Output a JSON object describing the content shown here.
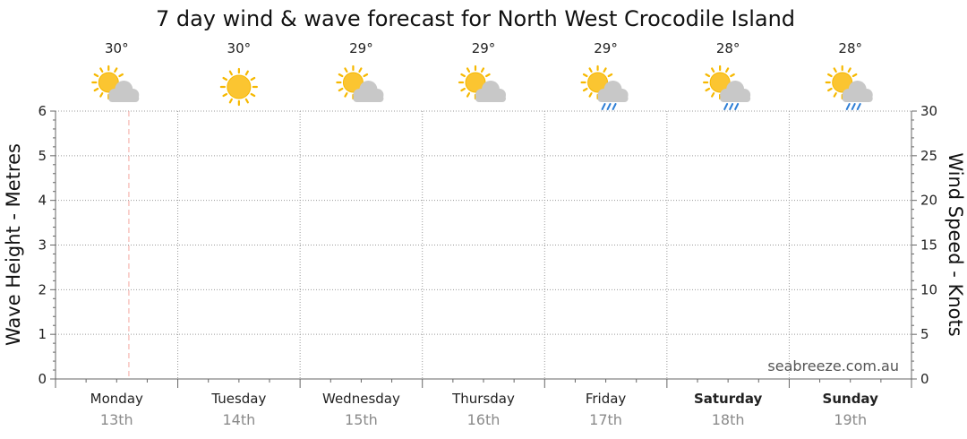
{
  "chart_data": {
    "type": "line",
    "title": "7 day wind & wave forecast for North West Crocodile Island",
    "ylabel_left": "Wave Height - Metres",
    "ylabel_right": "Wind Speed - Knots",
    "ylim_left": [
      0,
      6
    ],
    "ylim_right": [
      0,
      30
    ],
    "yticks_left": [
      "0",
      "1",
      "2",
      "3",
      "4",
      "5",
      "6"
    ],
    "yticks_right": [
      "0",
      "5",
      "10",
      "15",
      "20",
      "25",
      "30"
    ],
    "grid": true,
    "current_time_marker_day_fraction": 0.6,
    "days": [
      {
        "name": "Monday",
        "date": "13th",
        "temp": "30°",
        "icon": "partly-cloudy-icon",
        "bold": false
      },
      {
        "name": "Tuesday",
        "date": "14th",
        "temp": "30°",
        "icon": "sunny-icon",
        "bold": false
      },
      {
        "name": "Wednesday",
        "date": "15th",
        "temp": "29°",
        "icon": "partly-cloudy-icon",
        "bold": false
      },
      {
        "name": "Thursday",
        "date": "16th",
        "temp": "29°",
        "icon": "partly-cloudy-icon",
        "bold": false
      },
      {
        "name": "Friday",
        "date": "17th",
        "temp": "29°",
        "icon": "shower-icon",
        "bold": false
      },
      {
        "name": "Saturday",
        "date": "18th",
        "temp": "28°",
        "icon": "shower-icon",
        "bold": true
      },
      {
        "name": "Sunday",
        "date": "19th",
        "temp": "28°",
        "icon": "shower-icon",
        "bold": true
      }
    ],
    "series": [],
    "watermark": "seabreeze.com.au",
    "colors": {
      "grid": "#9a9a9a",
      "axis": "#666666",
      "now_marker": "#f4a6a0",
      "sun": "#fbc531",
      "sun_rays": "#f6b800",
      "cloud": "#c8c8c8",
      "rain": "#2f7fd6"
    }
  }
}
